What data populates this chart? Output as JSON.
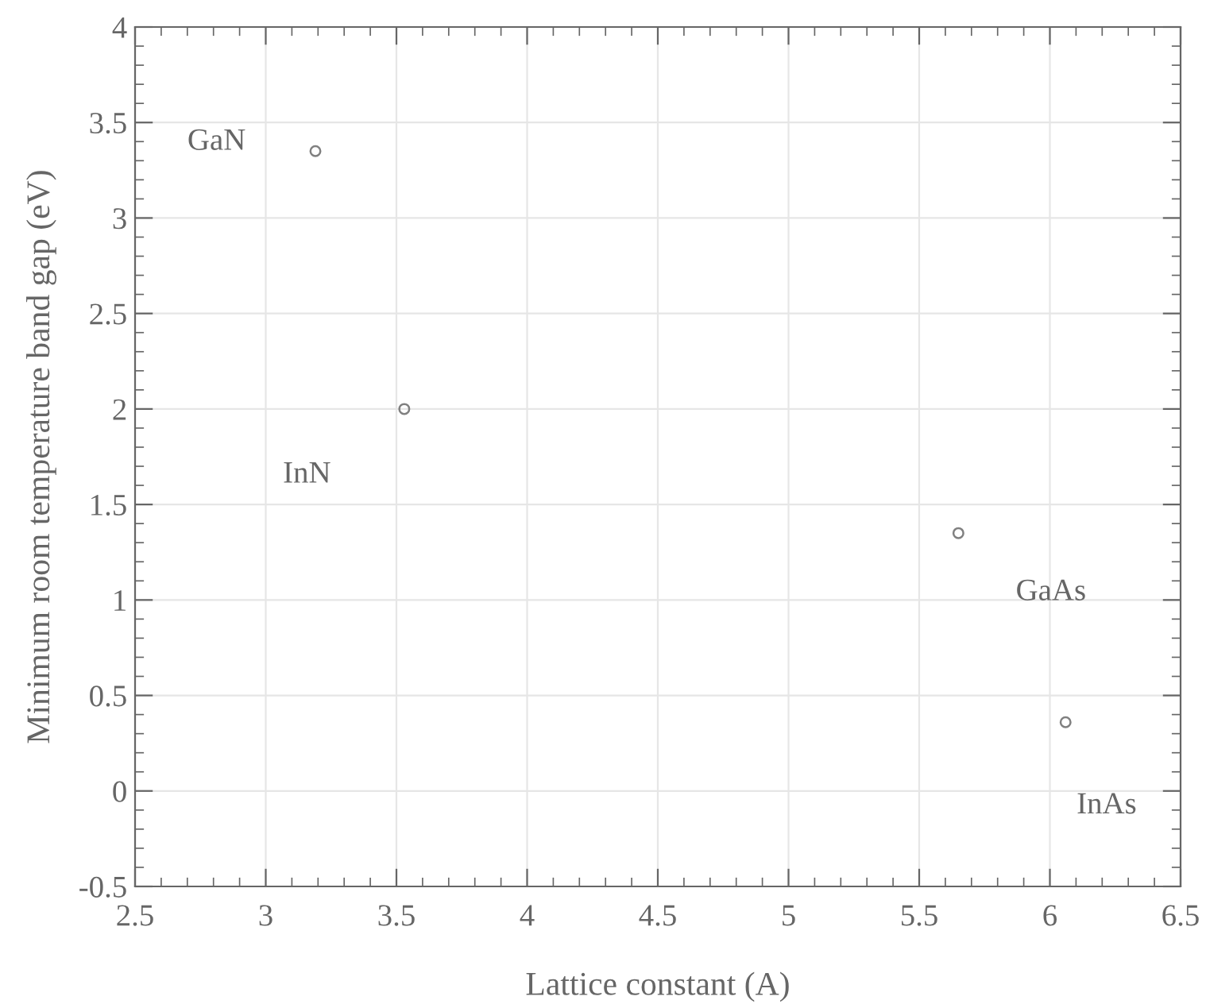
{
  "chart_data": {
    "type": "scatter",
    "xlabel": "Lattice constant (A)",
    "ylabel": "Minimum room temperature band gap (eV)",
    "series": [
      {
        "color": "#808080",
        "x": [
          3.19,
          3.53,
          5.65,
          6.06
        ],
        "values": [
          3.35,
          2.0,
          1.35,
          0.36
        ]
      }
    ],
    "marker": "circle",
    "grid": true,
    "xlim": [
      2.5,
      6.5
    ],
    "xticks": [
      2.5,
      3,
      3.5,
      4,
      4.5,
      5,
      5.5,
      6,
      6.5
    ],
    "ylim": [
      -0.5,
      4
    ],
    "yticks": [
      -0.5,
      0,
      0.5,
      1,
      1.5,
      2,
      2.5,
      3,
      3.5,
      4
    ],
    "annotations": [
      {
        "text": "GaN",
        "x": 3.19,
        "y": 3.35
      },
      {
        "text": "InN",
        "x": 3.53,
        "y": 2.0
      },
      {
        "text": "GaAs",
        "x": 5.65,
        "y": 1.35
      },
      {
        "text": "InAs",
        "x": 6.06,
        "y": 0.36
      }
    ]
  }
}
